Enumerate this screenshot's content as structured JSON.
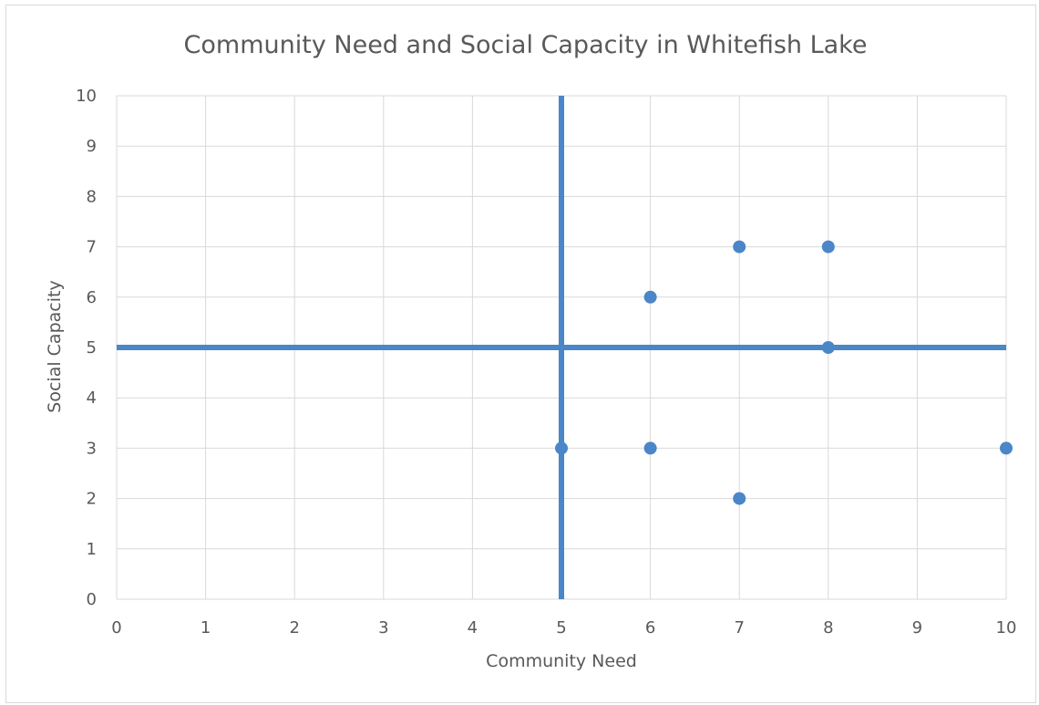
{
  "chart_data": {
    "type": "scatter",
    "title": "Community Need and Social Capacity in Whitefish Lake",
    "xlabel": "Community Need",
    "ylabel": "Social Capacity",
    "xlim": [
      0,
      10
    ],
    "ylim": [
      0,
      10
    ],
    "x_ticks": [
      "0",
      "1",
      "2",
      "3",
      "4",
      "5",
      "6",
      "7",
      "8",
      "9",
      "10"
    ],
    "y_ticks": [
      "0",
      "1",
      "2",
      "3",
      "4",
      "5",
      "6",
      "7",
      "8",
      "9",
      "10"
    ],
    "grid": true,
    "points": [
      {
        "x": 5,
        "y": 3
      },
      {
        "x": 6,
        "y": 6
      },
      {
        "x": 6,
        "y": 3
      },
      {
        "x": 7,
        "y": 7
      },
      {
        "x": 7,
        "y": 2
      },
      {
        "x": 8,
        "y": 7
      },
      {
        "x": 8,
        "y": 5
      },
      {
        "x": 10,
        "y": 3
      }
    ],
    "reference_lines": {
      "vertical_x": 5,
      "horizontal_y": 5
    },
    "colors": {
      "series": "#4a86c8",
      "grid": "#d9d9d9",
      "text": "#595959"
    }
  }
}
